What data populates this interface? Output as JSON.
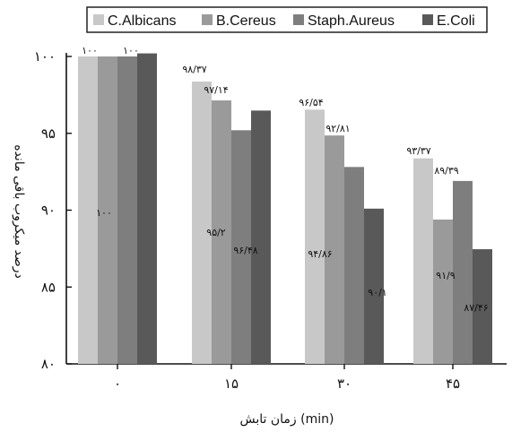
{
  "chart_data": {
    "type": "bar",
    "categories": [
      "۰",
      "۱۵",
      "۳۰",
      "۴۵"
    ],
    "series": [
      {
        "name": "C.Albicans",
        "color": "#c8c8c8",
        "values": [
          100,
          98.37,
          96.54,
          93.37
        ],
        "labels": [
          "۱۰۰",
          "۹۸/۳۷",
          "۹۶/۵۴",
          "۹۳/۳۷"
        ]
      },
      {
        "name": "B.Cereus",
        "color": "#9a9a9a",
        "values": [
          100,
          97.14,
          94.86,
          89.39
        ],
        "labels": [
          "۱۰۰",
          "۹۷/۱۴",
          "۹۴/۸۶",
          "۸۹/۳۹"
        ]
      },
      {
        "name": "Staph.Aureus",
        "color": "#7e7e7e",
        "values": [
          100,
          95.2,
          92.81,
          91.9
        ],
        "labels": [
          "۱۰۰",
          "۹۵/۲",
          "۹۲/۸۱",
          "۹۱/۹"
        ]
      },
      {
        "name": "E.Coli",
        "color": "#595959",
        "values": [
          100.2,
          96.48,
          90.1,
          87.46
        ],
        "labels": [
          "",
          "۹۶/۴۸",
          "۹۰/۱",
          "۸۷/۴۶"
        ]
      }
    ],
    "xlabel": "زمان تابش (min)",
    "ylabel": "درصد میکروب باقی مانده",
    "ylim": [
      80,
      100
    ],
    "yticks": [
      80,
      85,
      90,
      95,
      100
    ],
    "ytick_labels": [
      "۸۰",
      "۸۵",
      "۹۰",
      "۹۵",
      "۱۰۰"
    ],
    "grid": false,
    "legend_position": "top"
  }
}
